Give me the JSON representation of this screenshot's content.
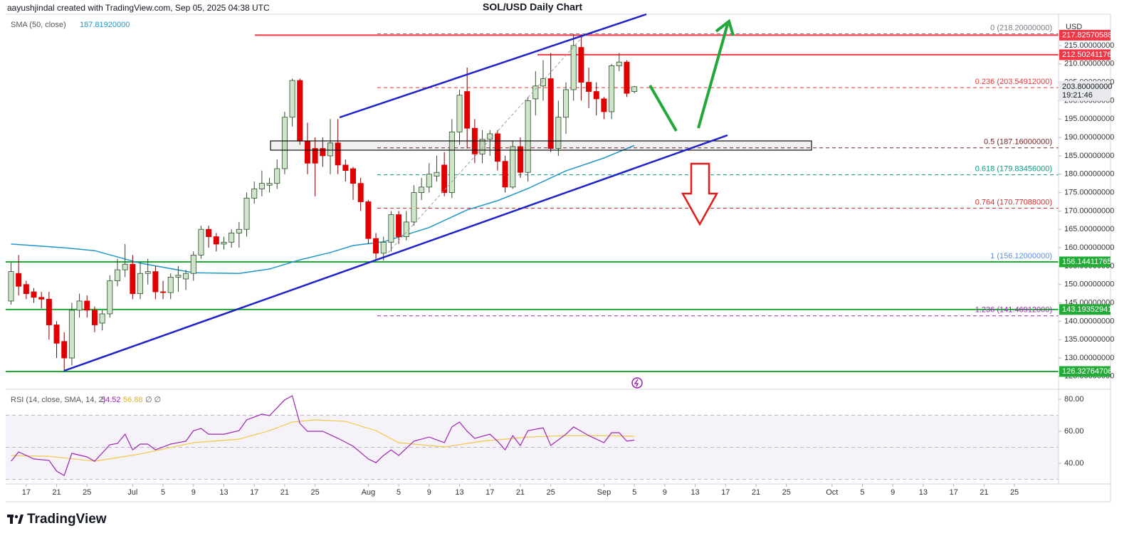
{
  "header": {
    "credit": "aayushjindal created with TradingView.com, Sep 05, 2025 04:38 UTC",
    "currency": "USD"
  },
  "footer": {
    "logo": "TradingView"
  },
  "chart_data": [
    {
      "type": "candlestick",
      "title": "SOL/USD Daily Chart",
      "x": [
        166,
        167,
        168,
        169,
        170,
        171,
        172,
        173,
        174,
        175,
        176,
        177,
        178,
        179,
        180,
        181,
        182,
        183,
        184,
        185,
        186,
        187,
        188,
        189,
        190,
        191,
        192,
        193,
        194,
        195,
        196,
        197,
        198,
        199,
        200,
        201,
        202,
        203,
        204,
        205,
        206,
        207,
        208,
        209,
        210,
        211,
        212,
        213,
        214,
        215,
        216,
        217,
        218,
        219,
        220,
        221,
        222,
        223,
        224,
        225,
        226,
        227,
        228,
        229,
        230,
        231,
        232,
        233,
        234,
        235,
        236,
        237,
        238,
        239,
        240,
        241,
        242,
        243,
        244,
        245,
        246,
        247,
        248
      ],
      "open": [
        145.5,
        153,
        150,
        148,
        146.5,
        146,
        139,
        134.5,
        130,
        143,
        145.5,
        143,
        139.5,
        142,
        151,
        154,
        155.5,
        147.5,
        153,
        153.5,
        148,
        147.8,
        152,
        151.5,
        153,
        158,
        165,
        163,
        161,
        161.5,
        164,
        165,
        173.5,
        176,
        177,
        177.5,
        181.5,
        195.5,
        205.5,
        189,
        187,
        187,
        185,
        188.5,
        182.5,
        181.5,
        177.5,
        172.5,
        162.5,
        158.5,
        161.5,
        169,
        163,
        167,
        175,
        176.5,
        179.5,
        182.5,
        175,
        191.5,
        202.5,
        192.5,
        185.5,
        189.5,
        191,
        183.5,
        176.5,
        187.5,
        180.5,
        200.5,
        204,
        206,
        187,
        195.5,
        203,
        214.5,
        205,
        202.5,
        200.5,
        197,
        209.5,
        210.5,
        202.5
      ],
      "high": [
        156,
        158,
        151,
        149,
        148,
        148,
        140,
        137,
        145,
        147.5,
        147,
        144,
        143,
        152.5,
        157,
        161,
        158,
        156,
        157,
        155,
        151,
        153,
        155,
        154,
        159,
        166,
        166,
        164,
        163,
        165,
        167,
        175,
        178,
        181,
        179,
        184,
        197,
        206,
        206,
        194,
        190,
        190,
        195,
        195,
        184,
        182,
        179,
        173,
        164,
        163,
        170,
        170,
        170,
        177,
        179,
        183,
        185,
        186,
        195,
        203,
        209,
        195,
        192,
        192,
        192,
        185,
        189,
        190,
        201,
        208,
        211,
        213,
        200,
        205,
        218.2,
        218,
        209,
        205,
        201,
        210,
        213,
        211,
        204
      ],
      "low": [
        144.5,
        147,
        146,
        145,
        143.5,
        135,
        130,
        126.3,
        128,
        141,
        141,
        137,
        137.5,
        141,
        149.5,
        152,
        146,
        146,
        150,
        146,
        146,
        146,
        148,
        148.5,
        151,
        157,
        160,
        159,
        159.5,
        160,
        160,
        163,
        172,
        174,
        175,
        176,
        180,
        193,
        188,
        180,
        174,
        182,
        180,
        180,
        178,
        173,
        170,
        161,
        156.5,
        156.5,
        159,
        161,
        162,
        166,
        173,
        175,
        178,
        174,
        173.5,
        188,
        187,
        183,
        183,
        185,
        181,
        175,
        176,
        179,
        178,
        196,
        200,
        186,
        185,
        191,
        200,
        200,
        198,
        196,
        195,
        195,
        208,
        201,
        202
      ],
      "close": [
        153.5,
        149.5,
        147.5,
        146.5,
        146,
        139,
        134,
        130,
        143,
        145.5,
        143,
        139,
        142,
        151,
        154,
        155.5,
        147.5,
        153,
        153.5,
        148,
        147.8,
        152,
        152.5,
        153,
        158,
        165,
        163,
        161,
        161.5,
        164,
        165,
        173.5,
        176,
        177.5,
        177.5,
        181.5,
        195.5,
        205.5,
        189,
        183,
        183,
        185,
        188.5,
        182.5,
        181,
        177.5,
        172.5,
        162.5,
        158.5,
        161.5,
        169,
        163,
        167,
        175,
        176.5,
        180,
        180.5,
        175,
        191.5,
        201.5,
        192.5,
        185.5,
        189.5,
        191,
        183.5,
        176.5,
        187.5,
        180.5,
        200,
        204,
        206,
        187,
        195.5,
        203,
        215,
        205,
        202.5,
        200.5,
        197,
        209.5,
        210.5,
        202,
        203.8
      ],
      "up_color": "#cfe5c9",
      "down_color": "#e00000",
      "xlim": [
        165.3,
        303.8
      ],
      "ylim": [
        121.87,
        223.52
      ],
      "yticks": [
        {
          "value": 125,
          "label": "125.00000000"
        },
        {
          "value": 130,
          "label": "130.00000000"
        },
        {
          "value": 135,
          "label": "135.00000000"
        },
        {
          "value": 140,
          "label": "140.00000000"
        },
        {
          "value": 145,
          "label": "145.00000000"
        },
        {
          "value": 150,
          "label": "150.00000000"
        },
        {
          "value": 155,
          "label": "155.00000000"
        },
        {
          "value": 160,
          "label": "160.00000000"
        },
        {
          "value": 165,
          "label": "165.00000000"
        },
        {
          "value": 170,
          "label": "170.00000000"
        },
        {
          "value": 175,
          "label": "175.00000000"
        },
        {
          "value": 180,
          "label": "180.00000000"
        },
        {
          "value": 185,
          "label": "185.00000000"
        },
        {
          "value": 190,
          "label": "190.00000000"
        },
        {
          "value": 195,
          "label": "195.00000000"
        },
        {
          "value": 200,
          "label": "200.00000000"
        },
        {
          "value": 205,
          "label": "205.00000000"
        },
        {
          "value": 210,
          "label": "210.00000000"
        },
        {
          "value": 215,
          "label": "215.00000000"
        }
      ],
      "sma": {
        "name": "SMA (50, close)",
        "color": "#2196c8",
        "legend_value": {
          "value": 187.8192,
          "label": "187.81920000"
        },
        "x": [
          166,
          173,
          177,
          183,
          190,
          196,
          200,
          204,
          208,
          211,
          215,
          221,
          226,
          230,
          234,
          239,
          244,
          248
        ],
        "values": [
          161,
          160,
          159.2,
          155.8,
          153.2,
          153,
          154.2,
          156.7,
          158.7,
          160.6,
          161.6,
          165.5,
          170.3,
          172.8,
          176.1,
          180.9,
          184.4,
          187.82
        ]
      },
      "price_labels": [
        {
          "value": 217.82570588,
          "label": "217.82570588",
          "color": "#f23645"
        },
        {
          "value": 212.50241176,
          "label": "212.50241176",
          "color": "#f23645"
        },
        {
          "value": 156.14411765,
          "label": "156.14411765",
          "color": "#22ab37"
        },
        {
          "value": 143.19352941,
          "label": "143.19352941",
          "color": "#22ab37"
        },
        {
          "value": 126.32764706,
          "label": "126.32764706",
          "color": "#22ab37"
        }
      ],
      "current_price": {
        "value": 203.8,
        "label": "203.80000000",
        "countdown": "19:21:46"
      },
      "fib_levels": [
        {
          "value": 218.2,
          "label": "0 (218.20000000)",
          "color": "#787b86"
        },
        {
          "value": 203.54912,
          "label": "0.236 (203.54912000)",
          "color": "#e53935"
        },
        {
          "value": 187.16,
          "label": "0.5 (187.16000000)",
          "color": "#7a2222"
        },
        {
          "value": 179.83456,
          "label": "0.618 (179.83456000)",
          "color": "#089981"
        },
        {
          "value": 170.77088,
          "label": "0.764 (170.77088000)",
          "color": "#d32f2f"
        },
        {
          "value": 156.12,
          "label": "1 (156.12000000)",
          "color": "#5b8def"
        },
        {
          "value": 141.46912,
          "label": "1.236 (141.46912000)",
          "color": "#9c27b0"
        }
      ]
    },
    {
      "type": "line",
      "title": "RSI (14, close, SMA, 14, 2)",
      "legend_extra": "∅ ∅",
      "color": "#9c27b0",
      "x": [
        166,
        167,
        169,
        171,
        172,
        173,
        174,
        176,
        177,
        179,
        180,
        181,
        182,
        183,
        184,
        185,
        187,
        189,
        190,
        191,
        192,
        194,
        196,
        197,
        199,
        200,
        202,
        203,
        204,
        205,
        207,
        209,
        211,
        213,
        214,
        215,
        216,
        217,
        219,
        221,
        223,
        224,
        225,
        226,
        227,
        229,
        230,
        231,
        232,
        233,
        234,
        236,
        237,
        239,
        240,
        242,
        244,
        245,
        246,
        247,
        248
      ],
      "values": [
        41.3,
        47.1,
        42.7,
        41.8,
        35.1,
        32.4,
        46.2,
        44,
        41.3,
        51.6,
        52.4,
        58.2,
        48.4,
        52,
        52,
        48.4,
        52,
        53.8,
        60.4,
        61.8,
        58.2,
        58.2,
        60.4,
        67.1,
        70.7,
        69.8,
        79.6,
        82.2,
        64.9,
        60,
        60,
        55.6,
        50.7,
        42.7,
        40.4,
        44.9,
        48.4,
        44.9,
        53.8,
        56.4,
        52.9,
        62.7,
        65.8,
        60,
        55.6,
        58.2,
        53.8,
        48.4,
        57.3,
        51.1,
        60.4,
        62.2,
        51.1,
        58.2,
        62.7,
        57.3,
        52.9,
        59.1,
        59.1,
        53.8,
        54.52
      ],
      "sma": {
        "color": "#f2c94c",
        "x": [
          166,
          171,
          177,
          183,
          190,
          196,
          200,
          203,
          206,
          210,
          214,
          217,
          223,
          228,
          234,
          239,
          245,
          248
        ],
        "values": [
          44.9,
          44.4,
          41.3,
          45.8,
          52.9,
          55.1,
          60.4,
          65.8,
          67.1,
          66.2,
          60.4,
          52.9,
          50.2,
          53.8,
          56.4,
          57.3,
          57.3,
          56.88
        ]
      },
      "levels": [
        70,
        50,
        30
      ],
      "xlim": [
        165.3,
        303.8
      ],
      "ylim": [
        27.11,
        84.89
      ],
      "yticks": [
        {
          "value": 40,
          "label": "40.00"
        },
        {
          "value": 60,
          "label": "60.00"
        },
        {
          "value": 80,
          "label": "80.00"
        }
      ],
      "xticks": [
        {
          "value": 168,
          "label": "17"
        },
        {
          "value": 172,
          "label": "21"
        },
        {
          "value": 176,
          "label": "25"
        },
        {
          "value": 182,
          "label": "Jul"
        },
        {
          "value": 186,
          "label": "5"
        },
        {
          "value": 190,
          "label": "9"
        },
        {
          "value": 194,
          "label": "13"
        },
        {
          "value": 198,
          "label": "17"
        },
        {
          "value": 202,
          "label": "21"
        },
        {
          "value": 206,
          "label": "25"
        },
        {
          "value": 213,
          "label": "Aug"
        },
        {
          "value": 217,
          "label": "5"
        },
        {
          "value": 221,
          "label": "9"
        },
        {
          "value": 225,
          "label": "13"
        },
        {
          "value": 229,
          "label": "17"
        },
        {
          "value": 233,
          "label": "21"
        },
        {
          "value": 237,
          "label": "25"
        },
        {
          "value": 244,
          "label": "Sep"
        },
        {
          "value": 248,
          "label": "5"
        },
        {
          "value": 252,
          "label": "9"
        },
        {
          "value": 256,
          "label": "13"
        },
        {
          "value": 260,
          "label": "17"
        },
        {
          "value": 264,
          "label": "21"
        },
        {
          "value": 268,
          "label": "25"
        },
        {
          "value": 274,
          "label": "Oct"
        },
        {
          "value": 278,
          "label": "5"
        },
        {
          "value": 282,
          "label": "9"
        },
        {
          "value": 286,
          "label": "13"
        },
        {
          "value": 290,
          "label": "17"
        },
        {
          "value": 294,
          "label": "21"
        },
        {
          "value": 298,
          "label": "25"
        }
      ]
    }
  ]
}
